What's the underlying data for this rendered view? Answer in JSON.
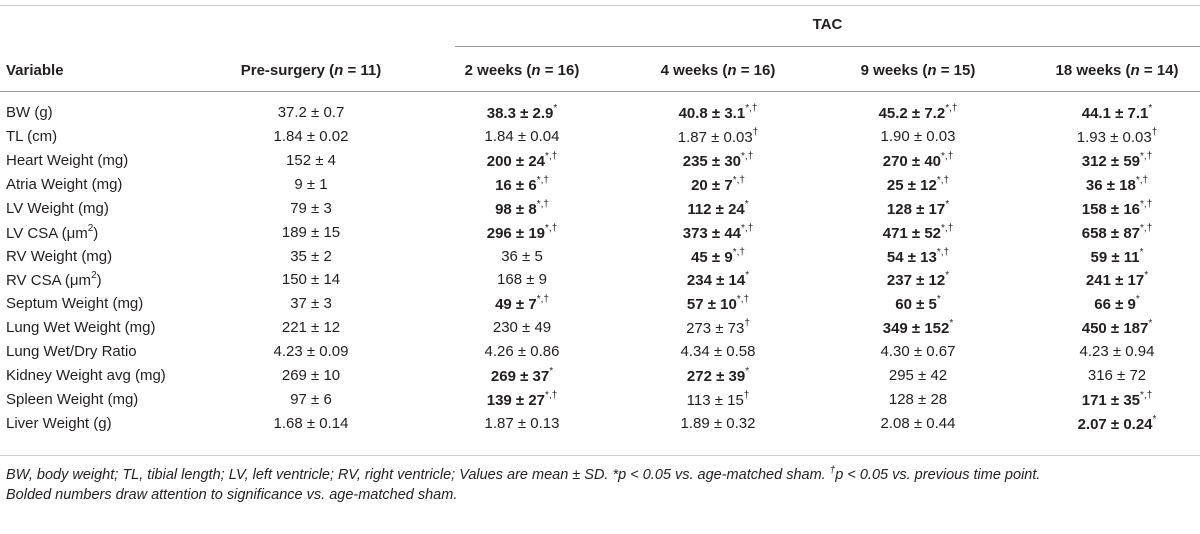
{
  "table": {
    "group_header": "TAC",
    "header": {
      "variable": "Variable",
      "pre_label": "Pre-surgery (",
      "pre_n": "n",
      "pre_val": " = 11)",
      "w2_label": "2 weeks (",
      "w2_n": "n",
      "w2_val": " = 16)",
      "w4_label": "4 weeks (",
      "w4_n": "n",
      "w4_val": " = 16)",
      "w9_label": "9 weeks (",
      "w9_n": "n",
      "w9_val": " = 15)",
      "w18_label": "18 weeks (",
      "w18_n": "n",
      "w18_val": " = 14)"
    },
    "rows": [
      {
        "var": "BW (g)",
        "cells": [
          {
            "v": "37.2 ± 0.7",
            "b": false,
            "s": ""
          },
          {
            "v": "38.3 ± 2.9",
            "b": true,
            "s": "*"
          },
          {
            "v": "40.8 ± 3.1",
            "b": true,
            "s": "*,†"
          },
          {
            "v": "45.2 ± 7.2",
            "b": true,
            "s": "*,†"
          },
          {
            "v": "44.1 ± 7.1",
            "b": true,
            "s": "*"
          }
        ]
      },
      {
        "var": "TL (cm)",
        "cells": [
          {
            "v": "1.84 ± 0.02",
            "b": false,
            "s": ""
          },
          {
            "v": "1.84 ± 0.04",
            "b": false,
            "s": ""
          },
          {
            "v": "1.87 ± 0.03",
            "b": false,
            "s": "†"
          },
          {
            "v": "1.90 ± 0.03",
            "b": false,
            "s": ""
          },
          {
            "v": "1.93 ± 0.03",
            "b": false,
            "s": "†"
          }
        ]
      },
      {
        "var": "Heart Weight (mg)",
        "cells": [
          {
            "v": "152 ± 4",
            "b": false,
            "s": ""
          },
          {
            "v": "200 ± 24",
            "b": true,
            "s": "*,†"
          },
          {
            "v": "235 ± 30",
            "b": true,
            "s": "*,†"
          },
          {
            "v": "270 ± 40",
            "b": true,
            "s": "*,†"
          },
          {
            "v": "312 ± 59",
            "b": true,
            "s": "*,†"
          }
        ]
      },
      {
        "var": "Atria Weight (mg)",
        "cells": [
          {
            "v": "9 ± 1",
            "b": false,
            "s": ""
          },
          {
            "v": "16 ± 6",
            "b": true,
            "s": "*,†"
          },
          {
            "v": "20 ± 7",
            "b": true,
            "s": "*,†"
          },
          {
            "v": "25 ± 12",
            "b": true,
            "s": "*,†"
          },
          {
            "v": "36 ± 18",
            "b": true,
            "s": "*,†"
          }
        ]
      },
      {
        "var": "LV Weight (mg)",
        "cells": [
          {
            "v": "79 ± 3",
            "b": false,
            "s": ""
          },
          {
            "v": "98 ± 8",
            "b": true,
            "s": "*,†"
          },
          {
            "v": "112 ± 24",
            "b": true,
            "s": "*"
          },
          {
            "v": "128 ± 17",
            "b": true,
            "s": "*"
          },
          {
            "v": "158 ± 16",
            "b": true,
            "s": "*,†"
          }
        ]
      },
      {
        "var": "LV CSA (μm",
        "var_sup": "2",
        "var_end": ")",
        "cells": [
          {
            "v": "189 ± 15",
            "b": false,
            "s": ""
          },
          {
            "v": "296 ± 19",
            "b": true,
            "s": "*,†"
          },
          {
            "v": "373 ± 44",
            "b": true,
            "s": "*,†"
          },
          {
            "v": "471 ± 52",
            "b": true,
            "s": "*,†"
          },
          {
            "v": "658 ± 87",
            "b": true,
            "s": "*,†"
          }
        ]
      },
      {
        "var": "RV Weight (mg)",
        "cells": [
          {
            "v": "35 ± 2",
            "b": false,
            "s": ""
          },
          {
            "v": "36 ± 5",
            "b": false,
            "s": ""
          },
          {
            "v": "45 ± 9",
            "b": true,
            "s": "*,†"
          },
          {
            "v": "54 ± 13",
            "b": true,
            "s": "*,†"
          },
          {
            "v": "59 ± 11",
            "b": true,
            "s": "*"
          }
        ]
      },
      {
        "var": "RV CSA (μm",
        "var_sup": "2",
        "var_end": ")",
        "cells": [
          {
            "v": "150 ± 14",
            "b": false,
            "s": ""
          },
          {
            "v": "168 ± 9",
            "b": false,
            "s": ""
          },
          {
            "v": "234 ± 14",
            "b": true,
            "s": "*"
          },
          {
            "v": "237 ± 12",
            "b": true,
            "s": "*"
          },
          {
            "v": "241 ± 17",
            "b": true,
            "s": "*"
          }
        ]
      },
      {
        "var": "Septum Weight (mg)",
        "cells": [
          {
            "v": "37 ± 3",
            "b": false,
            "s": ""
          },
          {
            "v": "49 ± 7",
            "b": true,
            "s": "*,†"
          },
          {
            "v": "57 ± 10",
            "b": true,
            "s": "*,†"
          },
          {
            "v": "60 ± 5",
            "b": true,
            "s": "*"
          },
          {
            "v": "66 ± 9",
            "b": true,
            "s": "*"
          }
        ]
      },
      {
        "var": "Lung Wet Weight (mg)",
        "cells": [
          {
            "v": "221 ± 12",
            "b": false,
            "s": ""
          },
          {
            "v": "230 ± 49",
            "b": false,
            "s": ""
          },
          {
            "v": "273 ± 73",
            "b": false,
            "s": "†"
          },
          {
            "v": "349 ± 152",
            "b": true,
            "s": "*"
          },
          {
            "v": "450 ± 187",
            "b": true,
            "s": "*"
          }
        ]
      },
      {
        "var": "Lung Wet/Dry Ratio",
        "cells": [
          {
            "v": "4.23 ± 0.09",
            "b": false,
            "s": ""
          },
          {
            "v": "4.26 ± 0.86",
            "b": false,
            "s": ""
          },
          {
            "v": "4.34 ± 0.58",
            "b": false,
            "s": ""
          },
          {
            "v": "4.30 ± 0.67",
            "b": false,
            "s": ""
          },
          {
            "v": "4.23 ± 0.94",
            "b": false,
            "s": ""
          }
        ]
      },
      {
        "var": "Kidney Weight avg (mg)",
        "cells": [
          {
            "v": "269 ± 10",
            "b": false,
            "s": ""
          },
          {
            "v": "269 ± 37",
            "b": true,
            "s": "*"
          },
          {
            "v": "272 ± 39",
            "b": true,
            "s": "*"
          },
          {
            "v": "295 ± 42",
            "b": false,
            "s": ""
          },
          {
            "v": "316 ± 72",
            "b": false,
            "s": ""
          }
        ]
      },
      {
        "var": "Spleen Weight (mg)",
        "cells": [
          {
            "v": "97 ± 6",
            "b": false,
            "s": ""
          },
          {
            "v": "139 ± 27",
            "b": true,
            "s": "*,†"
          },
          {
            "v": "113 ± 15",
            "b": false,
            "s": "†"
          },
          {
            "v": "128 ± 28",
            "b": false,
            "s": ""
          },
          {
            "v": "171 ± 35",
            "b": true,
            "s": "*,†"
          }
        ]
      },
      {
        "var": "Liver Weight (g)",
        "cells": [
          {
            "v": "1.68 ± 0.14",
            "b": false,
            "s": ""
          },
          {
            "v": "1.87 ± 0.13",
            "b": false,
            "s": ""
          },
          {
            "v": "1.89 ± 0.32",
            "b": false,
            "s": ""
          },
          {
            "v": "2.08 ± 0.44",
            "b": false,
            "s": ""
          },
          {
            "v": "2.07 ± 0.24",
            "b": true,
            "s": "*"
          }
        ]
      }
    ]
  },
  "footnote": {
    "line1": "BW, body weight; TL, tibial length; LV, left ventricle; RV, right ventricle; Values are mean ± SD. *p < 0.05 vs. age-matched sham. ",
    "dagger": "†",
    "line1_end": "p < 0.05 vs. previous time point.",
    "line2": "Bolded numbers draw attention to significance vs. age-matched sham."
  }
}
